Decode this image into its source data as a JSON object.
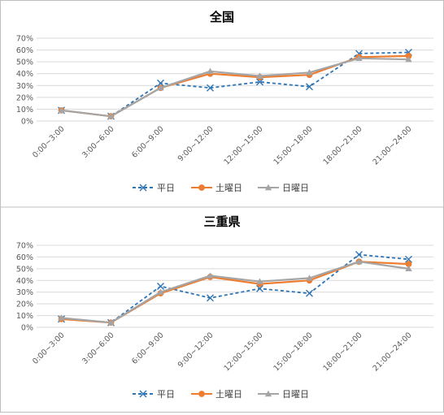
{
  "chart_data": [
    {
      "type": "line",
      "title": "全国",
      "categories": [
        "0:00~3:00",
        "3:00~6:00",
        "6:00~9:00",
        "9:00~12:00",
        "12:00~15:00",
        "15:00~18:00",
        "18:00~21:00",
        "21:00~24:00"
      ],
      "yticks": [
        "0%",
        "10%",
        "20%",
        "30%",
        "40%",
        "50%",
        "60%",
        "70%"
      ],
      "ylim": [
        0,
        0.7
      ],
      "grid": true,
      "legend_position": "bottom",
      "series": [
        {
          "name": "平日",
          "color": "#2e75b6",
          "marker": "x",
          "dash": true,
          "values": [
            0.09,
            0.04,
            0.32,
            0.28,
            0.33,
            0.29,
            0.57,
            0.58
          ]
        },
        {
          "name": "土曜日",
          "color": "#ed7d31",
          "marker": "circle",
          "dash": false,
          "values": [
            0.09,
            0.04,
            0.28,
            0.4,
            0.37,
            0.39,
            0.54,
            0.55
          ]
        },
        {
          "name": "日曜日",
          "color": "#a5a5a5",
          "marker": "triangle",
          "dash": false,
          "values": [
            0.09,
            0.04,
            0.28,
            0.42,
            0.38,
            0.41,
            0.53,
            0.52
          ]
        }
      ]
    },
    {
      "type": "line",
      "title": "三重県",
      "categories": [
        "0:00~3:00",
        "3:00~6:00",
        "6:00~9:00",
        "9:00~12:00",
        "12:00~15:00",
        "15:00~18:00",
        "18:00~21:00",
        "21:00~24:00"
      ],
      "yticks": [
        "0%",
        "10%",
        "20%",
        "30%",
        "40%",
        "50%",
        "60%",
        "70%"
      ],
      "ylim": [
        0,
        0.7
      ],
      "grid": true,
      "legend_position": "bottom",
      "series": [
        {
          "name": "平日",
          "color": "#2e75b6",
          "marker": "x",
          "dash": true,
          "values": [
            0.07,
            0.04,
            0.35,
            0.25,
            0.33,
            0.29,
            0.62,
            0.58
          ]
        },
        {
          "name": "土曜日",
          "color": "#ed7d31",
          "marker": "circle",
          "dash": false,
          "values": [
            0.07,
            0.04,
            0.29,
            0.43,
            0.37,
            0.4,
            0.56,
            0.54
          ]
        },
        {
          "name": "日曜日",
          "color": "#a5a5a5",
          "marker": "triangle",
          "dash": false,
          "values": [
            0.08,
            0.04,
            0.3,
            0.44,
            0.39,
            0.42,
            0.56,
            0.5
          ]
        }
      ]
    }
  ]
}
